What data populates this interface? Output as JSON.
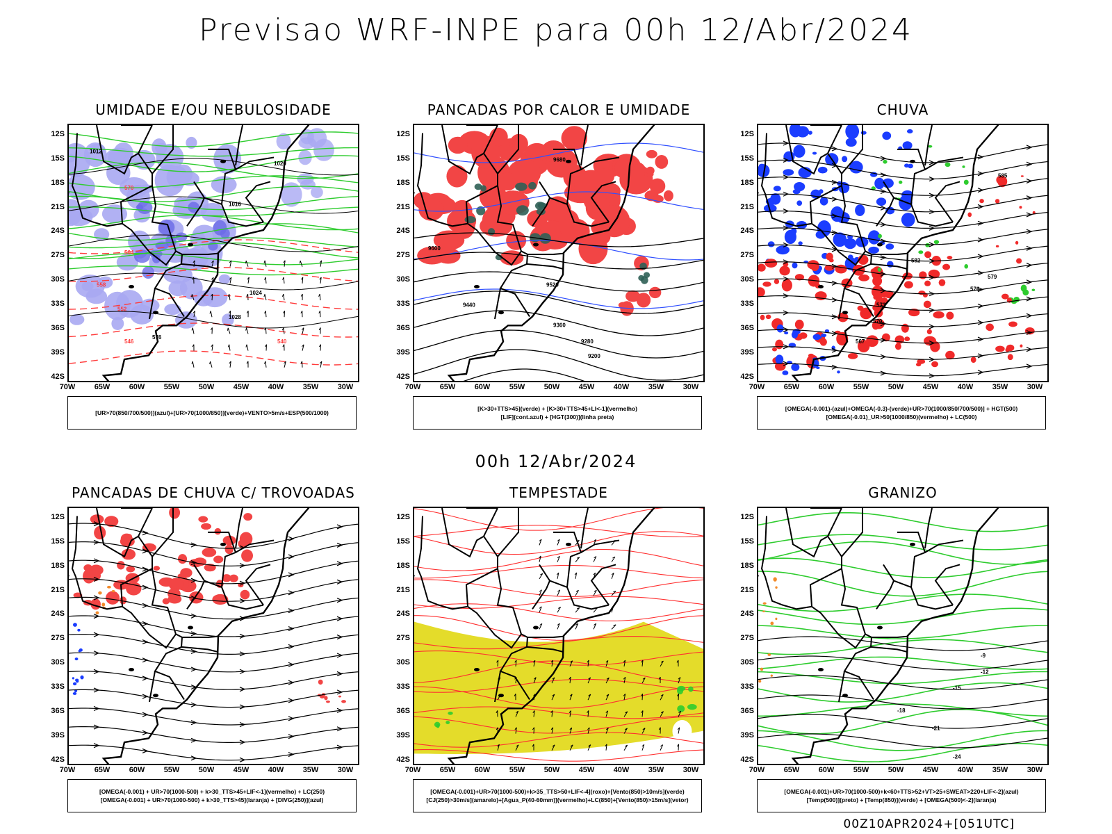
{
  "title": "Previsao WRF-INPE  para 00h 12/Abr/2024",
  "mid_title": "00h 12/Abr/2024",
  "footer": "00Z10APR2024+[051UTC]",
  "lat_labels": [
    "12S",
    "15S",
    "18S",
    "21S",
    "24S",
    "27S",
    "30S",
    "33S",
    "36S",
    "39S",
    "42S"
  ],
  "lon_labels": [
    "70W",
    "65W",
    "60W",
    "55W",
    "50W",
    "45W",
    "40W",
    "35W",
    "30W"
  ],
  "panels": [
    {
      "title": "UMIDADE E/OU NEBULOSIDADE",
      "legend": [
        "[UR>70(850/700/500)](azul)+[UR>70(1000/850)](verde)+VENTO>5m/s+ESP(500/1000)"
      ]
    },
    {
      "title": "PANCADAS POR CALOR E UMIDADE",
      "legend": [
        "[K>30+TTS>45](verde) + [K>30+TTS>45+LI<-1](vermelho)",
        "[LIF](cont.azul) + [HGT(300)](linha preta)"
      ]
    },
    {
      "title": "CHUVA",
      "legend": [
        "[OMEGA(-0.001)-(azul)+OMEGA(-0.3)-(verde)+UR>70(1000/850/700/500)] + HGT(500)",
        "[OMEGA(-0.01)_UR>50(1000/850)(vermelho) + LC(500)"
      ]
    },
    {
      "title": "PANCADAS DE CHUVA C/ TROVOADAS",
      "legend": [
        "[OMEGA(-0.001) + UR>70(1000-500) + k>30_TTS>45+LIF<-1](vermelho) + LC(250)",
        "[OMEGA(-0.001) + UR>70(1000-500) + k>30_TTS>45](laranja) + [DIVG(250)](azul)"
      ]
    },
    {
      "title": "TEMPESTADE",
      "legend": [
        "[OMEGA(-0.001)+UR>70(1000-500)+k>35_TTS>50+LIF<-4](roxo)+[Vento(850)>10m/s](verde)",
        "[CJ(250)>30m/s](amarelo)+[Agua_P(40-60mm)](vermelho)+LC(850)+[Vento(850)>15m/s](vetor)"
      ]
    },
    {
      "title": "GRANIZO",
      "legend": [
        "[OMEGA(-0.001)+UR>70(1000-500)+k<60+TTS>52+VT>25+SWEAT>220+LIF<-2](azul)",
        "[Temp(500)](preto) + [Temp(850)](verde) + [OMEGA(500)<-2](laranja)"
      ]
    }
  ],
  "contour_labels": {
    "p1": [
      "1012",
      "1016",
      "1020",
      "1024",
      "1028",
      "576",
      "570",
      "564",
      "558",
      "552",
      "546",
      "540"
    ],
    "p2": [
      "9680",
      "9600",
      "9520",
      "9440",
      "9360",
      "9280",
      "9200"
    ],
    "p3": [
      "585",
      "582",
      "579",
      "576",
      "573",
      "570",
      "567"
    ],
    "p6": [
      "-9",
      "-12",
      "-15",
      "-18",
      "-21",
      "-24"
    ]
  }
}
